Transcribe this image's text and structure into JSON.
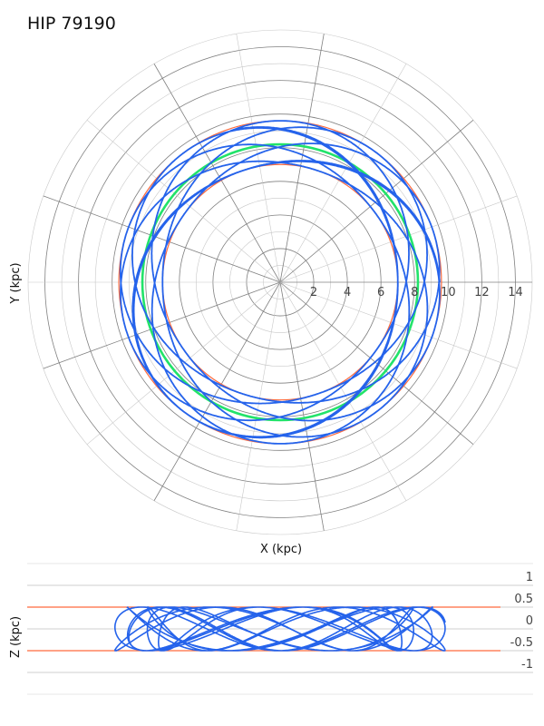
{
  "chart_data": [
    {
      "type": "polar-orbit",
      "title": "HIP 79190",
      "xlabel": "X (kpc)",
      "ylabel": "Y (kpc)",
      "radial_ticks": [
        "2",
        "4",
        "6",
        "8",
        "10",
        "12",
        "14"
      ],
      "radial_values": [
        2,
        4,
        6,
        8,
        10,
        12,
        14
      ],
      "rmax": 15,
      "grid": true,
      "sun_circle_radius": 8.2,
      "orbit_rmin": 7.0,
      "orbit_rmax": 9.6,
      "colors": {
        "orbit": "#2563eb",
        "sun_circle": "#22e36a",
        "bounds": "#ff6a3d",
        "grid_major": "#808080",
        "grid_minor": "#c8c8c8"
      }
    },
    {
      "type": "line",
      "xlabel": "",
      "ylabel": "Z (kpc)",
      "y_ticks": [
        "1",
        "0.5",
        "0",
        "-0.5",
        "-1"
      ],
      "y_values": [
        1,
        0.5,
        0,
        -0.5,
        -1
      ],
      "ylim": [
        -1.5,
        1.5
      ],
      "x_range_kpc": [
        -9.6,
        9.6
      ],
      "z_bounds": [
        0.5,
        -0.5
      ],
      "grid": true,
      "colors": {
        "orbit": "#2563eb",
        "bounds": "#ff6a3d",
        "grid": "#cfcfcf"
      }
    }
  ]
}
